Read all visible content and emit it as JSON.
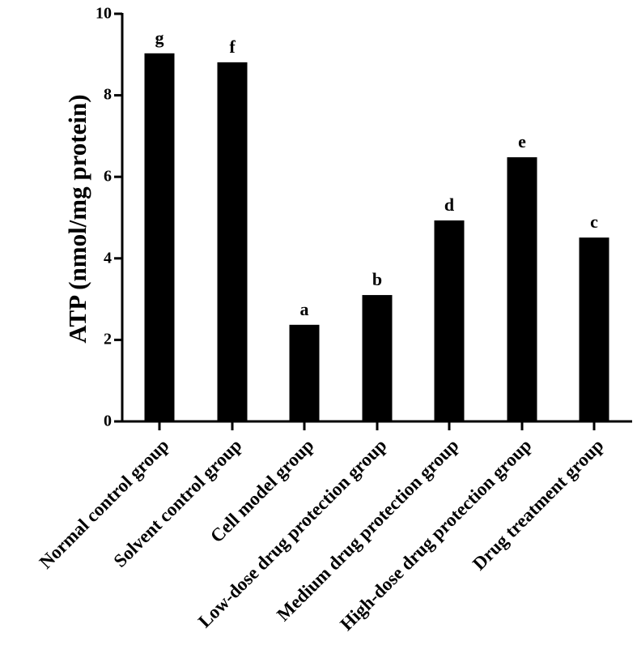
{
  "chart_data": {
    "type": "bar",
    "title": "",
    "xlabel": "",
    "ylabel": "ATP (nmol/mg protein)",
    "ylim": [
      0,
      10
    ],
    "yticks": [
      0,
      2,
      4,
      6,
      8,
      10
    ],
    "grid": false,
    "legend": null,
    "bar_color": "#000000",
    "categories": [
      "Normal control group",
      "Solvent control group",
      "Cell model group",
      "Low-dose drug protection group",
      "Medium drug protection group",
      "High-dose drug protection group",
      "Drug treatment group"
    ],
    "values": [
      9.03,
      8.81,
      2.37,
      3.1,
      4.93,
      6.48,
      4.51
    ],
    "significance_letters": [
      "g",
      "f",
      "a",
      "b",
      "d",
      "e",
      "c"
    ]
  },
  "axis": {
    "ylabel": "ATP (nmol/mg protein)",
    "ytick_labels": [
      "0",
      "2",
      "4",
      "6",
      "8",
      "10"
    ]
  },
  "bars": [
    {
      "label": "Normal control group",
      "value": 9.03,
      "letter": "g"
    },
    {
      "label": "Solvent control group",
      "value": 8.81,
      "letter": "f"
    },
    {
      "label": "Cell model group",
      "value": 2.37,
      "letter": "a"
    },
    {
      "label": "Low-dose drug protection group",
      "value": 3.1,
      "letter": "b"
    },
    {
      "label": "Medium drug protection group",
      "value": 4.93,
      "letter": "d"
    },
    {
      "label": "High-dose drug protection group",
      "value": 6.48,
      "letter": "e"
    },
    {
      "label": "Drug treatment group",
      "value": 4.51,
      "letter": "c"
    }
  ]
}
